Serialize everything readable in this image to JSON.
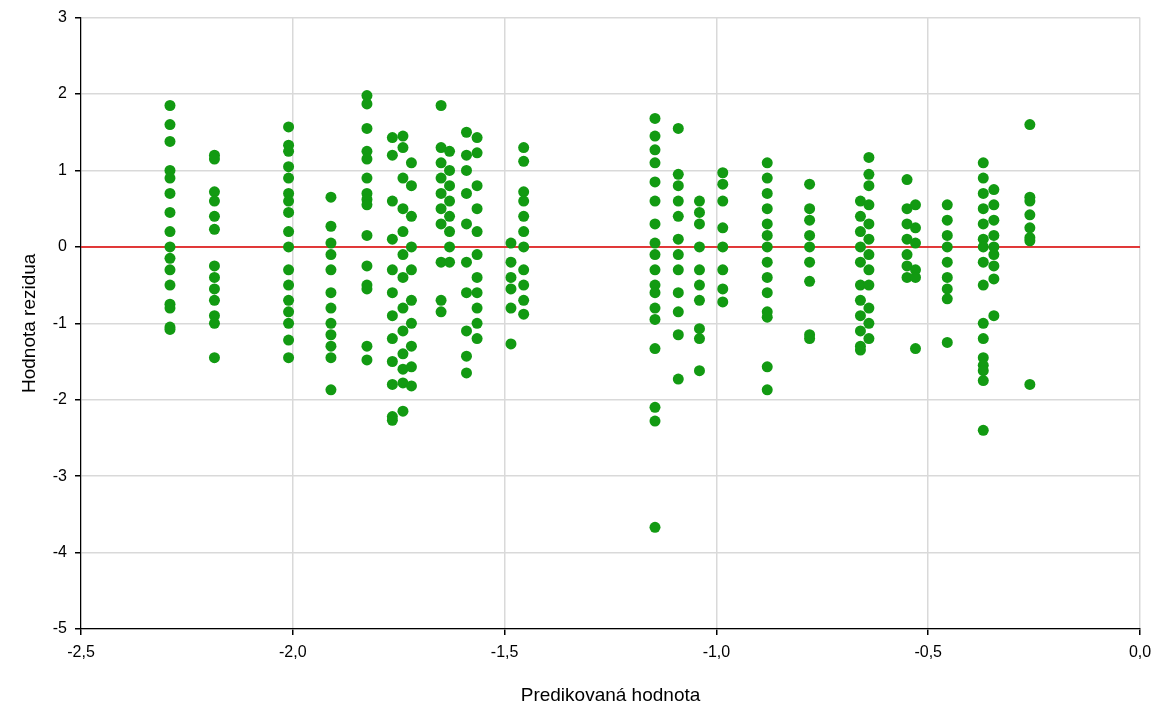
{
  "chart_data": {
    "type": "scatter",
    "xlabel": "Predikovaná hodnota",
    "ylabel": "Hodnota rezidua",
    "xlim": [
      -2.5,
      0.0
    ],
    "xticks": [
      {
        "value": -2.5,
        "label": "-2,5"
      },
      {
        "value": -2.0,
        "label": "-2,0"
      },
      {
        "value": -1.5,
        "label": "-1,5"
      },
      {
        "value": -1.0,
        "label": "-1,0"
      },
      {
        "value": -0.5,
        "label": "-0,5"
      },
      {
        "value": 0.0,
        "label": "0,0"
      }
    ],
    "ylim": [
      -5,
      3
    ],
    "yticks": [
      -5,
      -4,
      -3,
      -2,
      -1,
      0,
      1,
      2,
      3
    ],
    "grid": true,
    "legend": false,
    "marker": "circle",
    "ref_lines": [
      {
        "axis": "y",
        "value": 0,
        "color": "#e00000"
      }
    ],
    "series": [
      {
        "color": "#129a12",
        "x": [
          -2.29,
          -2.29,
          -2.29,
          -2.29,
          -2.29,
          -2.29,
          -2.29,
          -2.29,
          -2.29,
          -2.29,
          -2.29,
          -2.29,
          -2.29,
          -2.29,
          -2.29,
          -2.29,
          -2.185,
          -2.185,
          -2.185,
          -2.185,
          -2.185,
          -2.185,
          -2.185,
          -2.185,
          -2.185,
          -2.185,
          -2.185,
          -2.185,
          -2.185,
          -2.01,
          -2.01,
          -2.01,
          -2.01,
          -2.01,
          -2.01,
          -2.01,
          -2.01,
          -2.01,
          -2.01,
          -2.01,
          -2.01,
          -2.01,
          -2.01,
          -2.01,
          -2.01,
          -2.01,
          -1.91,
          -1.91,
          -1.91,
          -1.91,
          -1.91,
          -1.91,
          -1.91,
          -1.91,
          -1.91,
          -1.91,
          -1.91,
          -1.91,
          -1.825,
          -1.825,
          -1.825,
          -1.825,
          -1.825,
          -1.825,
          -1.825,
          -1.825,
          -1.825,
          -1.825,
          -1.825,
          -1.825,
          -1.825,
          -1.825,
          -1.825,
          -1.765,
          -1.765,
          -1.765,
          -1.765,
          -1.765,
          -1.765,
          -1.765,
          -1.765,
          -1.765,
          -1.765,
          -1.765,
          -1.765,
          -1.74,
          -1.74,
          -1.74,
          -1.74,
          -1.74,
          -1.74,
          -1.74,
          -1.74,
          -1.74,
          -1.74,
          -1.74,
          -1.74,
          -1.74,
          -1.72,
          -1.72,
          -1.72,
          -1.72,
          -1.72,
          -1.72,
          -1.72,
          -1.72,
          -1.72,
          -1.72,
          -1.65,
          -1.65,
          -1.65,
          -1.65,
          -1.65,
          -1.65,
          -1.65,
          -1.65,
          -1.65,
          -1.65,
          -1.63,
          -1.63,
          -1.63,
          -1.63,
          -1.63,
          -1.63,
          -1.63,
          -1.63,
          -1.59,
          -1.59,
          -1.59,
          -1.59,
          -1.59,
          -1.59,
          -1.59,
          -1.59,
          -1.59,
          -1.59,
          -1.565,
          -1.565,
          -1.565,
          -1.565,
          -1.565,
          -1.565,
          -1.565,
          -1.565,
          -1.565,
          -1.565,
          -1.565,
          -1.485,
          -1.485,
          -1.485,
          -1.485,
          -1.485,
          -1.485,
          -1.455,
          -1.455,
          -1.455,
          -1.455,
          -1.455,
          -1.455,
          -1.455,
          -1.455,
          -1.455,
          -1.455,
          -1.455,
          -1.145,
          -1.145,
          -1.145,
          -1.145,
          -1.145,
          -1.145,
          -1.145,
          -1.145,
          -1.145,
          -1.145,
          -1.145,
          -1.145,
          -1.145,
          -1.145,
          -1.145,
          -1.145,
          -1.145,
          -1.145,
          -1.09,
          -1.09,
          -1.09,
          -1.09,
          -1.09,
          -1.09,
          -1.09,
          -1.09,
          -1.09,
          -1.09,
          -1.09,
          -1.09,
          -1.04,
          -1.04,
          -1.04,
          -1.04,
          -1.04,
          -1.04,
          -1.04,
          -1.04,
          -1.04,
          -1.04,
          -0.985,
          -0.985,
          -0.985,
          -0.985,
          -0.985,
          -0.985,
          -0.985,
          -0.985,
          -0.88,
          -0.88,
          -0.88,
          -0.88,
          -0.88,
          -0.88,
          -0.88,
          -0.88,
          -0.88,
          -0.88,
          -0.88,
          -0.88,
          -0.88,
          -0.88,
          -0.78,
          -0.78,
          -0.78,
          -0.78,
          -0.78,
          -0.78,
          -0.78,
          -0.78,
          -0.78,
          -0.66,
          -0.66,
          -0.66,
          -0.66,
          -0.66,
          -0.66,
          -0.66,
          -0.66,
          -0.66,
          -0.66,
          -0.66,
          -0.64,
          -0.64,
          -0.64,
          -0.64,
          -0.64,
          -0.64,
          -0.64,
          -0.64,
          -0.64,
          -0.64,
          -0.64,
          -0.64,
          -0.55,
          -0.55,
          -0.55,
          -0.55,
          -0.55,
          -0.55,
          -0.55,
          -0.53,
          -0.53,
          -0.53,
          -0.53,
          -0.53,
          -0.53,
          -0.455,
          -0.455,
          -0.455,
          -0.455,
          -0.455,
          -0.455,
          -0.455,
          -0.455,
          -0.455,
          -0.37,
          -0.37,
          -0.37,
          -0.37,
          -0.37,
          -0.37,
          -0.37,
          -0.37,
          -0.37,
          -0.37,
          -0.37,
          -0.37,
          -0.37,
          -0.37,
          -0.37,
          -0.37,
          -0.345,
          -0.345,
          -0.345,
          -0.345,
          -0.345,
          -0.345,
          -0.345,
          -0.345,
          -0.345,
          -0.26,
          -0.26,
          -0.26,
          -0.26,
          -0.26,
          -0.26,
          -0.26,
          -0.26
        ],
        "values": [
          1.85,
          1.6,
          1.38,
          1.0,
          0.9,
          0.7,
          0.45,
          0.2,
          0.0,
          -0.15,
          -0.3,
          -0.5,
          -0.75,
          -0.8,
          -1.05,
          -1.08,
          1.2,
          1.15,
          0.72,
          0.6,
          0.4,
          0.23,
          -0.25,
          -0.4,
          -0.55,
          -0.7,
          -0.9,
          -1.0,
          -1.45,
          1.57,
          1.33,
          1.25,
          1.05,
          0.9,
          0.7,
          0.6,
          0.45,
          0.2,
          0.0,
          -0.3,
          -0.5,
          -0.7,
          -0.85,
          -1.0,
          -1.22,
          -1.45,
          0.65,
          0.27,
          0.05,
          -0.1,
          -0.3,
          -0.6,
          -0.8,
          -1.0,
          -1.15,
          -1.3,
          -1.45,
          -1.87,
          1.98,
          1.87,
          1.55,
          1.25,
          1.15,
          0.9,
          0.7,
          0.62,
          0.55,
          0.15,
          -0.25,
          -0.5,
          -0.55,
          -1.3,
          -1.48,
          1.43,
          1.2,
          0.6,
          0.1,
          -0.3,
          -0.6,
          -0.9,
          -1.2,
          -1.5,
          -1.8,
          -2.22,
          -2.27,
          1.45,
          1.3,
          0.9,
          0.5,
          0.2,
          -0.1,
          -0.4,
          -0.8,
          -1.1,
          -1.4,
          -1.6,
          -1.78,
          -2.15,
          1.1,
          0.8,
          0.4,
          0.0,
          -0.3,
          -0.7,
          -1.0,
          -1.3,
          -1.57,
          -1.82,
          1.85,
          1.3,
          1.1,
          0.9,
          0.7,
          0.5,
          0.3,
          -0.2,
          -0.7,
          -0.85,
          1.25,
          1.0,
          0.8,
          0.6,
          0.4,
          0.2,
          0.0,
          -0.2,
          1.5,
          1.2,
          1.0,
          0.7,
          0.3,
          -0.2,
          -0.6,
          -1.1,
          -1.43,
          -1.65,
          1.43,
          1.23,
          0.8,
          0.5,
          0.2,
          -0.1,
          -0.4,
          -0.6,
          -0.8,
          -1.0,
          -1.2,
          0.05,
          -0.2,
          -0.4,
          -0.55,
          -0.8,
          -1.27,
          1.3,
          1.12,
          0.72,
          0.6,
          0.4,
          0.2,
          0.0,
          -0.3,
          -0.5,
          -0.7,
          -0.88,
          1.68,
          1.45,
          1.27,
          1.1,
          0.85,
          0.6,
          0.3,
          0.05,
          -0.1,
          -0.3,
          -0.5,
          -0.6,
          -0.8,
          -0.95,
          -1.33,
          -2.1,
          -2.28,
          -3.67,
          1.55,
          0.95,
          0.8,
          0.6,
          0.4,
          0.1,
          -0.1,
          -0.3,
          -0.6,
          -0.85,
          -1.15,
          -1.73,
          0.6,
          0.45,
          0.3,
          0.0,
          -0.3,
          -0.5,
          -0.7,
          -1.07,
          -1.2,
          -1.62,
          0.97,
          0.82,
          0.6,
          0.25,
          0.0,
          -0.3,
          -0.55,
          -0.72,
          1.1,
          0.9,
          0.7,
          0.5,
          0.3,
          0.15,
          0.0,
          -0.2,
          -0.4,
          -0.6,
          -0.85,
          -0.92,
          -1.57,
          -1.87,
          0.82,
          0.5,
          0.35,
          0.15,
          0.0,
          -0.2,
          -0.45,
          -1.15,
          -1.2,
          0.6,
          0.4,
          0.2,
          0.0,
          -0.2,
          -0.5,
          -0.7,
          -0.9,
          -1.1,
          -1.3,
          -1.35,
          1.17,
          0.95,
          0.8,
          0.55,
          0.3,
          0.1,
          -0.1,
          -0.3,
          -0.5,
          -0.8,
          -1.0,
          -1.2,
          0.88,
          0.5,
          0.3,
          0.1,
          -0.1,
          -0.25,
          -0.4,
          0.55,
          0.25,
          0.05,
          -0.3,
          -0.4,
          -1.33,
          0.55,
          0.35,
          0.15,
          0.0,
          -0.2,
          -0.4,
          -0.55,
          -0.68,
          -1.25,
          1.1,
          0.9,
          0.7,
          0.5,
          0.3,
          0.1,
          0.0,
          -0.2,
          -0.5,
          -1.0,
          -1.2,
          -1.45,
          -1.55,
          -1.62,
          -1.75,
          -2.4,
          0.75,
          0.55,
          0.35,
          0.15,
          0.0,
          -0.1,
          -0.25,
          -0.42,
          -0.9,
          1.6,
          0.65,
          0.6,
          0.42,
          0.25,
          0.12,
          0.08,
          -1.8
        ]
      }
    ]
  }
}
